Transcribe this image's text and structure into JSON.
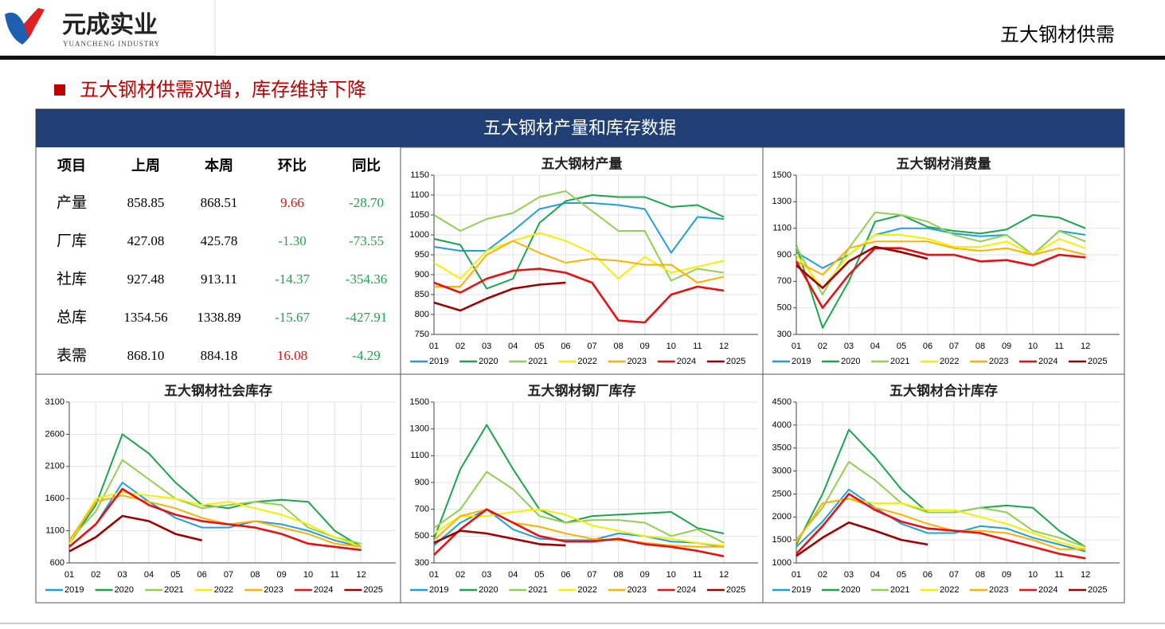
{
  "header": {
    "company": "元成实业",
    "company_en": "YUANCHENG INDUSTRY",
    "page_title": "五大钢材供需"
  },
  "section_title": "五大钢材供需双增，库存维持下降",
  "panel_title": "五大钢材产量和库存数据",
  "table": {
    "header": [
      "项目",
      "上周",
      "本周",
      "环比",
      "同比"
    ],
    "rows": [
      [
        "产量",
        "858.85",
        "868.51",
        "9.66",
        "-28.70"
      ],
      [
        "厂库",
        "427.08",
        "425.78",
        "-1.30",
        "-73.55"
      ],
      [
        "社库",
        "927.48",
        "913.11",
        "-14.37",
        "-354.36"
      ],
      [
        "总库",
        "1354.56",
        "1338.89",
        "-15.67",
        "-427.91"
      ],
      [
        "表需",
        "868.10",
        "884.18",
        "16.08",
        "-4.29"
      ]
    ]
  },
  "chart_data": [
    {
      "type": "line",
      "title": "五大钢材产量",
      "grid": true,
      "categories": [
        "01",
        "02",
        "03",
        "04",
        "05",
        "06",
        "07",
        "08",
        "09",
        "10",
        "11",
        "12"
      ],
      "ylim": [
        750,
        1150
      ],
      "yticks": [
        750,
        800,
        850,
        900,
        950,
        1000,
        1050,
        1100,
        1150
      ],
      "series": [
        {
          "name": "2019",
          "color": "#1ea0e0",
          "values": [
            970,
            960,
            960,
            1010,
            1065,
            1080,
            1080,
            1075,
            1065,
            955,
            1045,
            1040
          ]
        },
        {
          "name": "2020",
          "color": "#1aa64a",
          "values": [
            990,
            975,
            865,
            890,
            1030,
            1085,
            1100,
            1095,
            1095,
            1070,
            1075,
            1045
          ]
        },
        {
          "name": "2021",
          "color": "#92d050",
          "values": [
            1050,
            1010,
            1040,
            1055,
            1095,
            1110,
            1060,
            1010,
            1010,
            885,
            915,
            905
          ]
        },
        {
          "name": "2022",
          "color": "#f5ef00",
          "values": [
            930,
            890,
            960,
            985,
            1005,
            985,
            955,
            890,
            945,
            905,
            920,
            935
          ]
        },
        {
          "name": "2023",
          "color": "#ffb000",
          "values": [
            870,
            870,
            950,
            985,
            955,
            930,
            940,
            935,
            925,
            925,
            880,
            895
          ]
        },
        {
          "name": "2024",
          "color": "#e81010",
          "values": [
            880,
            855,
            890,
            910,
            915,
            905,
            880,
            785,
            780,
            850,
            870,
            860
          ]
        },
        {
          "name": "2025",
          "color": "#a00000",
          "values": [
            830,
            810,
            840,
            865,
            875,
            880,
            null,
            null,
            null,
            null,
            null,
            null
          ]
        }
      ]
    },
    {
      "type": "line",
      "title": "五大钢材消费量",
      "grid": true,
      "categories": [
        "01",
        "02",
        "03",
        "04",
        "05",
        "06",
        "07",
        "08",
        "09",
        "10",
        "11",
        "12"
      ],
      "ylim": [
        300,
        1500
      ],
      "yticks": [
        300,
        500,
        700,
        900,
        1100,
        1300,
        1500
      ],
      "series": [
        {
          "name": "2019",
          "color": "#1ea0e0",
          "values": [
            920,
            800,
            900,
            1050,
            1100,
            1100,
            1060,
            1040,
            1050,
            900,
            1080,
            1050
          ]
        },
        {
          "name": "2020",
          "color": "#1aa64a",
          "values": [
            970,
            350,
            700,
            1150,
            1200,
            1110,
            1080,
            1060,
            1090,
            1200,
            1180,
            1100
          ]
        },
        {
          "name": "2021",
          "color": "#92d050",
          "values": [
            960,
            600,
            950,
            1220,
            1200,
            1150,
            1050,
            1000,
            1050,
            900,
            1080,
            1000
          ]
        },
        {
          "name": "2022",
          "color": "#f5ef00",
          "values": [
            900,
            650,
            900,
            1050,
            1050,
            1020,
            960,
            960,
            1000,
            900,
            1020,
            950
          ]
        },
        {
          "name": "2023",
          "color": "#ffb000",
          "values": [
            850,
            750,
            950,
            1000,
            1000,
            1000,
            950,
            930,
            950,
            900,
            950,
            900
          ]
        },
        {
          "name": "2024",
          "color": "#e81010",
          "values": [
            850,
            500,
            750,
            950,
            950,
            900,
            900,
            850,
            860,
            820,
            900,
            880
          ]
        },
        {
          "name": "2025",
          "color": "#a00000",
          "values": [
            820,
            650,
            850,
            960,
            920,
            870,
            null,
            null,
            null,
            null,
            null,
            null
          ]
        }
      ]
    },
    {
      "type": "line",
      "title": "五大钢材社会库存",
      "grid": true,
      "categories": [
        "01",
        "02",
        "03",
        "04",
        "05",
        "06",
        "07",
        "08",
        "09",
        "10",
        "11",
        "12"
      ],
      "ylim": [
        600,
        3100
      ],
      "yticks": [
        600,
        1100,
        1600,
        2100,
        2600,
        3100
      ],
      "series": [
        {
          "name": "2019",
          "color": "#1ea0e0",
          "values": [
            850,
            1200,
            1850,
            1550,
            1300,
            1150,
            1150,
            1250,
            1200,
            1100,
            950,
            850
          ]
        },
        {
          "name": "2020",
          "color": "#1aa64a",
          "values": [
            900,
            1500,
            2600,
            2300,
            1850,
            1500,
            1450,
            1550,
            1580,
            1550,
            1100,
            850
          ]
        },
        {
          "name": "2021",
          "color": "#92d050",
          "values": [
            950,
            1400,
            2200,
            1900,
            1600,
            1450,
            1500,
            1550,
            1500,
            1150,
            1000,
            900
          ]
        },
        {
          "name": "2022",
          "color": "#f5ef00",
          "values": [
            900,
            1600,
            1700,
            1650,
            1600,
            1500,
            1550,
            1450,
            1350,
            1200,
            1000,
            850
          ]
        },
        {
          "name": "2023",
          "color": "#ffb000",
          "values": [
            950,
            1550,
            1650,
            1550,
            1450,
            1300,
            1200,
            1250,
            1150,
            1050,
            900,
            850
          ]
        },
        {
          "name": "2024",
          "color": "#e81010",
          "values": [
            850,
            1200,
            1750,
            1500,
            1350,
            1250,
            1200,
            1150,
            1050,
            900,
            850,
            800
          ]
        },
        {
          "name": "2025",
          "color": "#a00000",
          "values": [
            780,
            1000,
            1330,
            1250,
            1050,
            950,
            null,
            null,
            null,
            null,
            null,
            null
          ]
        }
      ]
    },
    {
      "type": "line",
      "title": "五大钢材钢厂库存",
      "grid": true,
      "categories": [
        "01",
        "02",
        "03",
        "04",
        "05",
        "06",
        "07",
        "08",
        "09",
        "10",
        "11",
        "12"
      ],
      "ylim": [
        300,
        1500
      ],
      "yticks": [
        300,
        500,
        700,
        900,
        1100,
        1300,
        1500
      ],
      "series": [
        {
          "name": "2019",
          "color": "#1ea0e0",
          "values": [
            430,
            600,
            700,
            550,
            480,
            470,
            470,
            520,
            500,
            460,
            450,
            420
          ]
        },
        {
          "name": "2020",
          "color": "#1aa64a",
          "values": [
            480,
            1000,
            1330,
            1000,
            700,
            600,
            650,
            660,
            670,
            680,
            560,
            520
          ]
        },
        {
          "name": "2021",
          "color": "#92d050",
          "values": [
            560,
            700,
            980,
            850,
            650,
            600,
            620,
            620,
            600,
            500,
            550,
            450
          ]
        },
        {
          "name": "2022",
          "color": "#f5ef00",
          "values": [
            520,
            650,
            650,
            680,
            700,
            660,
            580,
            540,
            500,
            480,
            450,
            430
          ]
        },
        {
          "name": "2023",
          "color": "#ffb000",
          "values": [
            470,
            650,
            700,
            600,
            570,
            520,
            480,
            470,
            450,
            430,
            420,
            420
          ]
        },
        {
          "name": "2024",
          "color": "#e81010",
          "values": [
            360,
            550,
            700,
            600,
            500,
            460,
            460,
            480,
            440,
            420,
            390,
            350
          ]
        },
        {
          "name": "2025",
          "color": "#a00000",
          "values": [
            450,
            540,
            520,
            480,
            440,
            430,
            null,
            null,
            null,
            null,
            null,
            null
          ]
        }
      ]
    },
    {
      "type": "line",
      "title": "五大钢材合计库存",
      "grid": true,
      "categories": [
        "01",
        "02",
        "03",
        "04",
        "05",
        "06",
        "07",
        "08",
        "09",
        "10",
        "11",
        "12"
      ],
      "ylim": [
        1000,
        4500
      ],
      "yticks": [
        1000,
        1500,
        2000,
        2500,
        3000,
        3500,
        4000,
        4500
      ],
      "series": [
        {
          "name": "2019",
          "color": "#1ea0e0",
          "values": [
            1350,
            1900,
            2600,
            2200,
            1850,
            1650,
            1650,
            1800,
            1750,
            1550,
            1400,
            1250
          ]
        },
        {
          "name": "2020",
          "color": "#1aa64a",
          "values": [
            1400,
            2500,
            3900,
            3300,
            2600,
            2100,
            2100,
            2200,
            2250,
            2200,
            1700,
            1350
          ]
        },
        {
          "name": "2021",
          "color": "#92d050",
          "values": [
            1500,
            2200,
            3200,
            2800,
            2300,
            2100,
            2100,
            2200,
            2100,
            1700,
            1550,
            1350
          ]
        },
        {
          "name": "2022",
          "color": "#f5ef00",
          "values": [
            1450,
            2300,
            2400,
            2300,
            2300,
            2150,
            2150,
            2000,
            1850,
            1650,
            1450,
            1300
          ]
        },
        {
          "name": "2023",
          "color": "#ffb000",
          "values": [
            1450,
            2300,
            2400,
            2200,
            2050,
            1850,
            1700,
            1700,
            1650,
            1500,
            1300,
            1300
          ]
        },
        {
          "name": "2024",
          "color": "#e81010",
          "values": [
            1200,
            1800,
            2500,
            2150,
            1900,
            1750,
            1700,
            1650,
            1500,
            1350,
            1200,
            1100
          ]
        },
        {
          "name": "2025",
          "color": "#a00000",
          "values": [
            1150,
            1550,
            1880,
            1700,
            1500,
            1400,
            null,
            null,
            null,
            null,
            null,
            null
          ]
        }
      ]
    }
  ]
}
